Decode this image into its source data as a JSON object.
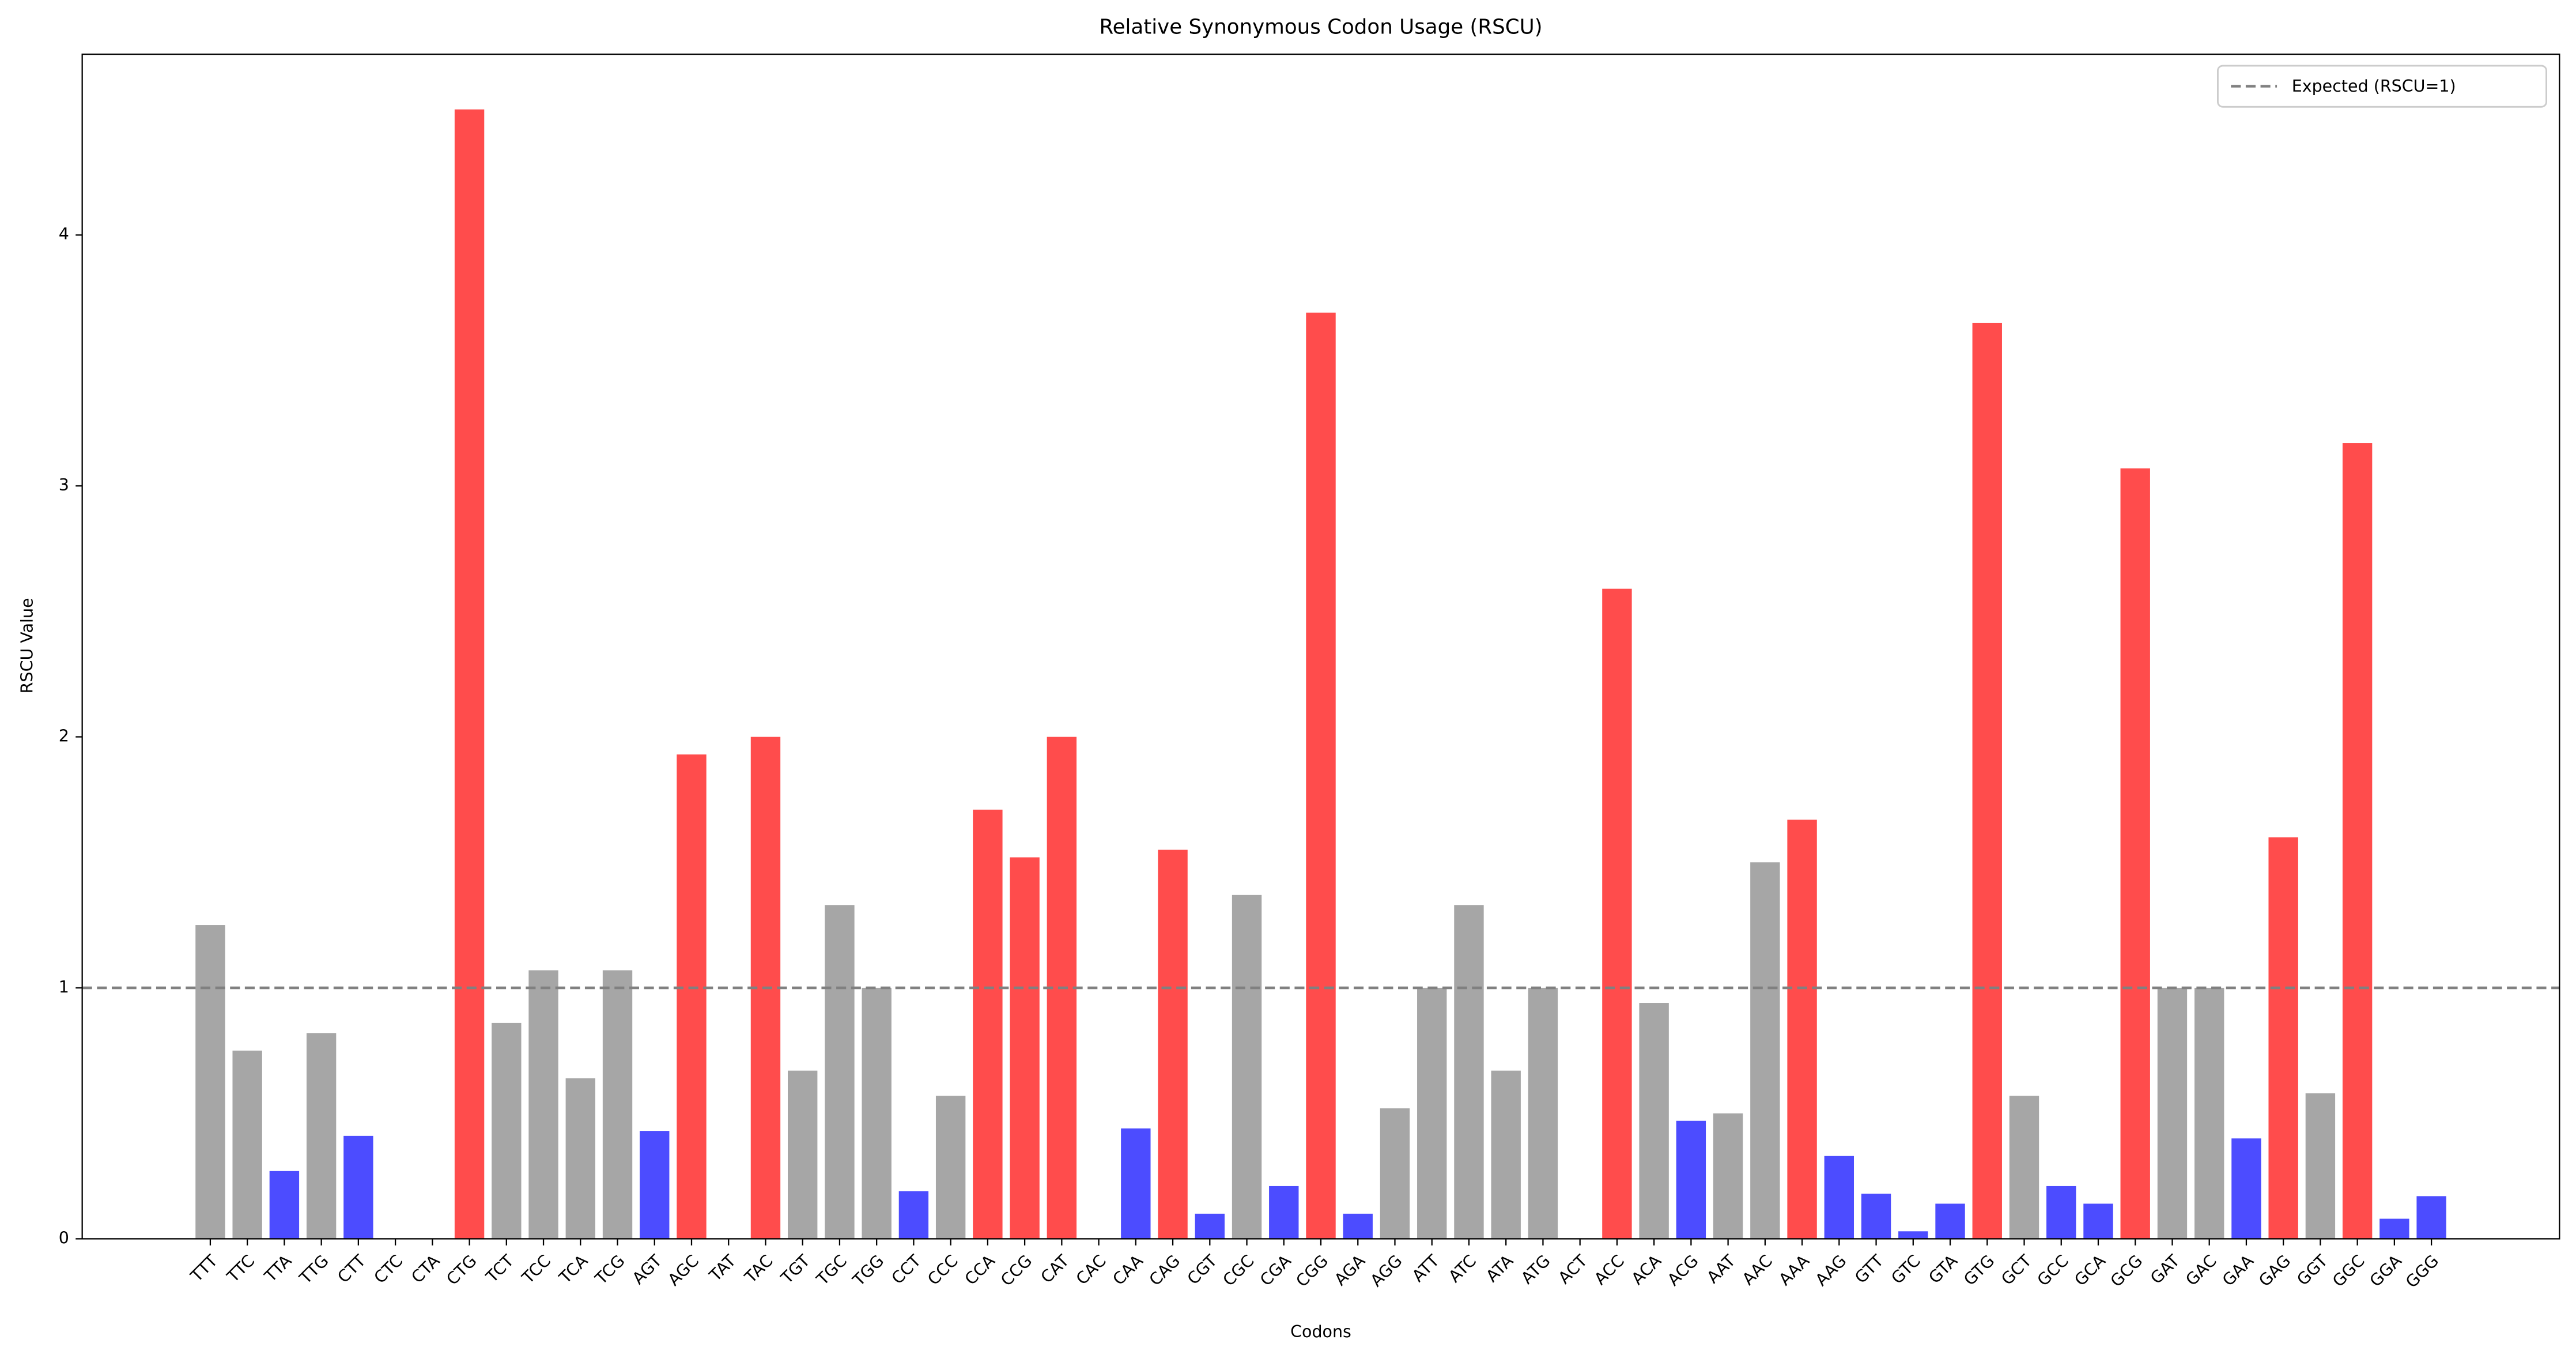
{
  "chart_data": {
    "type": "bar",
    "title": "Relative Synonymous Codon Usage (RSCU)",
    "x_label": "Codons",
    "y_label": "RSCU Value",
    "categories": [
      "TTT",
      "TTC",
      "TTA",
      "TTG",
      "CTT",
      "CTC",
      "CTA",
      "CTG",
      "TCT",
      "TCC",
      "TCA",
      "TCG",
      "AGT",
      "AGC",
      "TAT",
      "TAC",
      "TGT",
      "TGC",
      "TGG",
      "CCT",
      "CCC",
      "CCA",
      "CCG",
      "CAT",
      "CAC",
      "CAA",
      "CAG",
      "CGT",
      "CGC",
      "CGA",
      "CGG",
      "AGA",
      "AGG",
      "ATT",
      "ATC",
      "ATA",
      "ATG",
      "ACT",
      "ACC",
      "ACA",
      "ACG",
      "AAT",
      "AAC",
      "AAA",
      "AAG",
      "GTT",
      "GTC",
      "GTA",
      "GTG",
      "GCT",
      "GCC",
      "GCA",
      "GCG",
      "GAT",
      "GAC",
      "GAA",
      "GAG",
      "GGT",
      "GGC",
      "GGA",
      "GGG"
    ],
    "values": [
      1.25,
      0.75,
      0.27,
      0.82,
      0.41,
      0,
      0,
      4.5,
      0.86,
      1.07,
      0.64,
      1.07,
      0.43,
      1.93,
      0,
      2.0,
      0.67,
      1.33,
      1.0,
      0.19,
      0.57,
      1.71,
      1.52,
      2.0,
      0,
      0.44,
      1.55,
      0.1,
      1.37,
      0.21,
      3.69,
      0.1,
      0.52,
      1.0,
      1.33,
      0.67,
      1.0,
      0,
      2.59,
      0.94,
      0.47,
      0.5,
      1.5,
      1.67,
      0.33,
      0.18,
      0.03,
      0.14,
      3.65,
      0.57,
      0.21,
      0.14,
      3.07,
      1.0,
      1.0,
      0.4,
      1.6,
      0.58,
      3.17,
      0.08,
      0.17
    ],
    "colors": [
      "#a6a6a6",
      "#a6a6a6",
      "#4c4cff",
      "#a6a6a6",
      "#4c4cff",
      "#4c4cff",
      "#4c4cff",
      "#ff4c4c",
      "#a6a6a6",
      "#a6a6a6",
      "#a6a6a6",
      "#a6a6a6",
      "#4c4cff",
      "#ff4c4c",
      "#4c4cff",
      "#ff4c4c",
      "#a6a6a6",
      "#a6a6a6",
      "#a6a6a6",
      "#4c4cff",
      "#a6a6a6",
      "#ff4c4c",
      "#ff4c4c",
      "#ff4c4c",
      "#4c4cff",
      "#4c4cff",
      "#ff4c4c",
      "#4c4cff",
      "#a6a6a6",
      "#4c4cff",
      "#ff4c4c",
      "#4c4cff",
      "#a6a6a6",
      "#a6a6a6",
      "#a6a6a6",
      "#a6a6a6",
      "#a6a6a6",
      "#4c4cff",
      "#ff4c4c",
      "#a6a6a6",
      "#4c4cff",
      "#a6a6a6",
      "#a6a6a6",
      "#ff4c4c",
      "#4c4cff",
      "#4c4cff",
      "#4c4cff",
      "#4c4cff",
      "#ff4c4c",
      "#a6a6a6",
      "#4c4cff",
      "#4c4cff",
      "#ff4c4c",
      "#a6a6a6",
      "#a6a6a6",
      "#4c4cff",
      "#ff4c4c",
      "#a6a6a6",
      "#ff4c4c",
      "#4c4cff",
      "#4c4cff"
    ],
    "ylim": [
      0,
      4.72
    ],
    "yticks": [
      0,
      1,
      2,
      3,
      4
    ],
    "reference_line": {
      "value": 1,
      "label": "Expected (RSCU=1)",
      "color": "#808080"
    },
    "legend": "upper right"
  }
}
